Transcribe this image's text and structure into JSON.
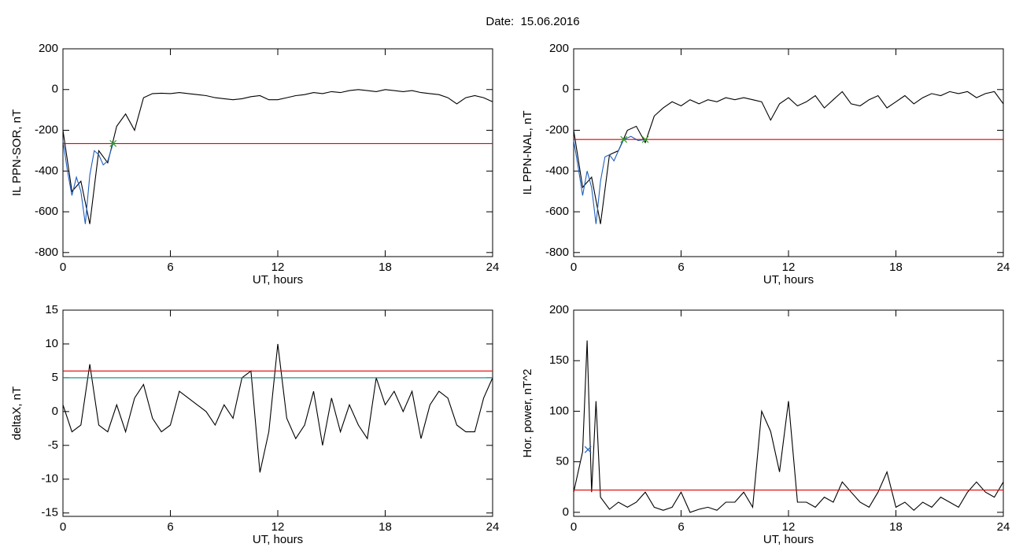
{
  "title": "Date:  15.06.2016",
  "chart_data": [
    {
      "type": "line",
      "ylabel": "IL PPN-SOR, nT",
      "xlabel": "UT, hours",
      "xlim": [
        0,
        24
      ],
      "xticks": [
        0,
        6,
        12,
        18,
        24
      ],
      "ylim": [
        -820,
        200
      ],
      "yticks": [
        200,
        0,
        -200,
        -400,
        -600,
        -800
      ],
      "series": [
        {
          "color": "#000000",
          "x": [
            0,
            0.5,
            1,
            1.5,
            2,
            2.5,
            3,
            3.5,
            4,
            4.5,
            5,
            5.5,
            6,
            6.5,
            7,
            7.5,
            8,
            8.5,
            9,
            9.5,
            10,
            10.5,
            11,
            11.5,
            12,
            12.5,
            13,
            13.5,
            14,
            14.5,
            15,
            15.5,
            16,
            16.5,
            17,
            17.5,
            18,
            18.5,
            19,
            19.5,
            20,
            20.5,
            21,
            21.5,
            22,
            22.5,
            23,
            23.5,
            24
          ],
          "values": [
            -200,
            -500,
            -450,
            -660,
            -300,
            -360,
            -180,
            -120,
            -200,
            -40,
            -20,
            -18,
            -20,
            -15,
            -20,
            -25,
            -30,
            -40,
            -45,
            -50,
            -45,
            -35,
            -30,
            -50,
            -50,
            -40,
            -30,
            -25,
            -15,
            -20,
            -10,
            -15,
            -5,
            0,
            -5,
            -10,
            0,
            -5,
            -10,
            -5,
            -15,
            -20,
            -25,
            -40,
            -70,
            -40,
            -30,
            -40,
            -60
          ]
        },
        {
          "color": "#1f5fbf",
          "x": [
            0,
            0.25,
            0.5,
            0.75,
            1,
            1.25,
            1.5,
            1.75,
            2,
            2.25,
            2.5,
            2.8
          ],
          "values": [
            -250,
            -400,
            -520,
            -430,
            -500,
            -660,
            -420,
            -300,
            -320,
            -370,
            -350,
            -265
          ]
        },
        {
          "color": "#e00000",
          "x": [
            0,
            24
          ],
          "values": [
            -265,
            -265
          ]
        },
        {
          "color": "#2ca02c",
          "marker": "x",
          "x": [
            2.8
          ],
          "values": [
            -265
          ]
        }
      ]
    },
    {
      "type": "line",
      "ylabel": "IL PPN-NAL, nT",
      "xlabel": "UT, hours",
      "xlim": [
        0,
        24
      ],
      "xticks": [
        0,
        6,
        12,
        18,
        24
      ],
      "ylim": [
        -820,
        200
      ],
      "yticks": [
        200,
        0,
        -200,
        -400,
        -600,
        -800
      ],
      "series": [
        {
          "color": "#000000",
          "x": [
            0,
            0.5,
            1,
            1.5,
            2,
            2.5,
            3,
            3.5,
            4,
            4.5,
            5,
            5.5,
            6,
            6.5,
            7,
            7.5,
            8,
            8.5,
            9,
            9.5,
            10,
            10.5,
            11,
            11.5,
            12,
            12.5,
            13,
            13.5,
            14,
            14.5,
            15,
            15.5,
            16,
            16.5,
            17,
            17.5,
            18,
            18.5,
            19,
            19.5,
            20,
            20.5,
            21,
            21.5,
            22,
            22.5,
            23,
            23.5,
            24
          ],
          "values": [
            -200,
            -480,
            -430,
            -660,
            -320,
            -300,
            -200,
            -180,
            -260,
            -130,
            -90,
            -60,
            -80,
            -50,
            -70,
            -50,
            -60,
            -40,
            -50,
            -40,
            -50,
            -60,
            -150,
            -70,
            -40,
            -80,
            -60,
            -30,
            -90,
            -50,
            -10,
            -70,
            -80,
            -50,
            -30,
            -90,
            -60,
            -30,
            -70,
            -40,
            -20,
            -30,
            -10,
            -20,
            -10,
            -40,
            -20,
            -10,
            -70
          ]
        },
        {
          "color": "#1f5fbf",
          "x": [
            0,
            0.25,
            0.5,
            0.75,
            1,
            1.25,
            1.5,
            1.75,
            2,
            2.25,
            2.5,
            2.8,
            3.2,
            3.6,
            4
          ],
          "values": [
            -250,
            -380,
            -520,
            -400,
            -480,
            -660,
            -450,
            -330,
            -320,
            -350,
            -300,
            -245,
            -230,
            -250,
            -245
          ]
        },
        {
          "color": "#e00000",
          "x": [
            0,
            24
          ],
          "values": [
            -245,
            -245
          ]
        },
        {
          "color": "#2ca02c",
          "marker": "x",
          "x": [
            2.8,
            4
          ],
          "values": [
            -245,
            -245
          ]
        }
      ]
    },
    {
      "type": "line",
      "ylabel": "deltaX, nT",
      "xlabel": "UT, hours",
      "xlim": [
        0,
        24
      ],
      "xticks": [
        0,
        6,
        12,
        18,
        24
      ],
      "ylim": [
        -15.5,
        15
      ],
      "yticks": [
        15,
        10,
        5,
        0,
        -5,
        -10,
        -15
      ],
      "series": [
        {
          "color": "#000000",
          "x": [
            0,
            0.5,
            1,
            1.5,
            2,
            2.5,
            3,
            3.5,
            4,
            4.5,
            5,
            5.5,
            6,
            6.5,
            7,
            7.5,
            8,
            8.5,
            9,
            9.5,
            10,
            10.5,
            11,
            11.5,
            12,
            12.5,
            13,
            13.5,
            14,
            14.5,
            15,
            15.5,
            16,
            16.5,
            17,
            17.5,
            18,
            18.5,
            19,
            19.5,
            20,
            20.5,
            21,
            21.5,
            22,
            22.5,
            23,
            23.5,
            24
          ],
          "values": [
            1,
            -3,
            -2,
            7,
            -2,
            -3,
            1,
            -3,
            2,
            4,
            -1,
            -3,
            -2,
            3,
            2,
            1,
            0,
            -2,
            1,
            -1,
            5,
            6,
            -9,
            -3,
            10,
            -1,
            -4,
            -2,
            3,
            -5,
            2,
            -3,
            1,
            -2,
            -4,
            5,
            1,
            3,
            0,
            3,
            -4,
            1,
            3,
            2,
            -2,
            -3,
            -3,
            2,
            5
          ]
        },
        {
          "color": "#e00000",
          "x": [
            0,
            24
          ],
          "values": [
            6,
            6
          ]
        },
        {
          "color": "#108080",
          "x": [
            0,
            24
          ],
          "values": [
            5,
            5
          ]
        }
      ]
    },
    {
      "type": "line",
      "ylabel": "Hor. power, nT^2",
      "xlabel": "UT, hours",
      "xlim": [
        0,
        24
      ],
      "xticks": [
        0,
        6,
        12,
        18,
        24
      ],
      "ylim": [
        -4,
        200
      ],
      "yticks": [
        200,
        150,
        100,
        50,
        0
      ],
      "series": [
        {
          "color": "#000000",
          "x": [
            0,
            0.5,
            0.75,
            1,
            1.25,
            1.5,
            2,
            2.5,
            3,
            3.5,
            4,
            4.5,
            5,
            5.5,
            6,
            6.5,
            7,
            7.5,
            8,
            8.5,
            9,
            9.5,
            10,
            10.5,
            11,
            11.5,
            12,
            12.5,
            13,
            13.5,
            14,
            14.5,
            15,
            15.5,
            16,
            16.5,
            17,
            17.5,
            18,
            18.5,
            19,
            19.5,
            20,
            20.5,
            21,
            21.5,
            22,
            22.5,
            23,
            23.5,
            24
          ],
          "values": [
            20,
            60,
            170,
            20,
            110,
            15,
            3,
            10,
            5,
            10,
            20,
            5,
            2,
            5,
            20,
            0,
            3,
            5,
            2,
            10,
            10,
            20,
            5,
            100,
            80,
            40,
            110,
            10,
            10,
            5,
            15,
            10,
            30,
            20,
            10,
            5,
            20,
            40,
            5,
            10,
            2,
            10,
            5,
            15,
            10,
            5,
            20,
            30,
            20,
            15,
            30
          ]
        },
        {
          "color": "#e00000",
          "x": [
            0,
            24
          ],
          "values": [
            22,
            22
          ]
        },
        {
          "color": "#1f5fbf",
          "marker": "x",
          "x": [
            0.8
          ],
          "values": [
            62
          ]
        }
      ]
    }
  ]
}
